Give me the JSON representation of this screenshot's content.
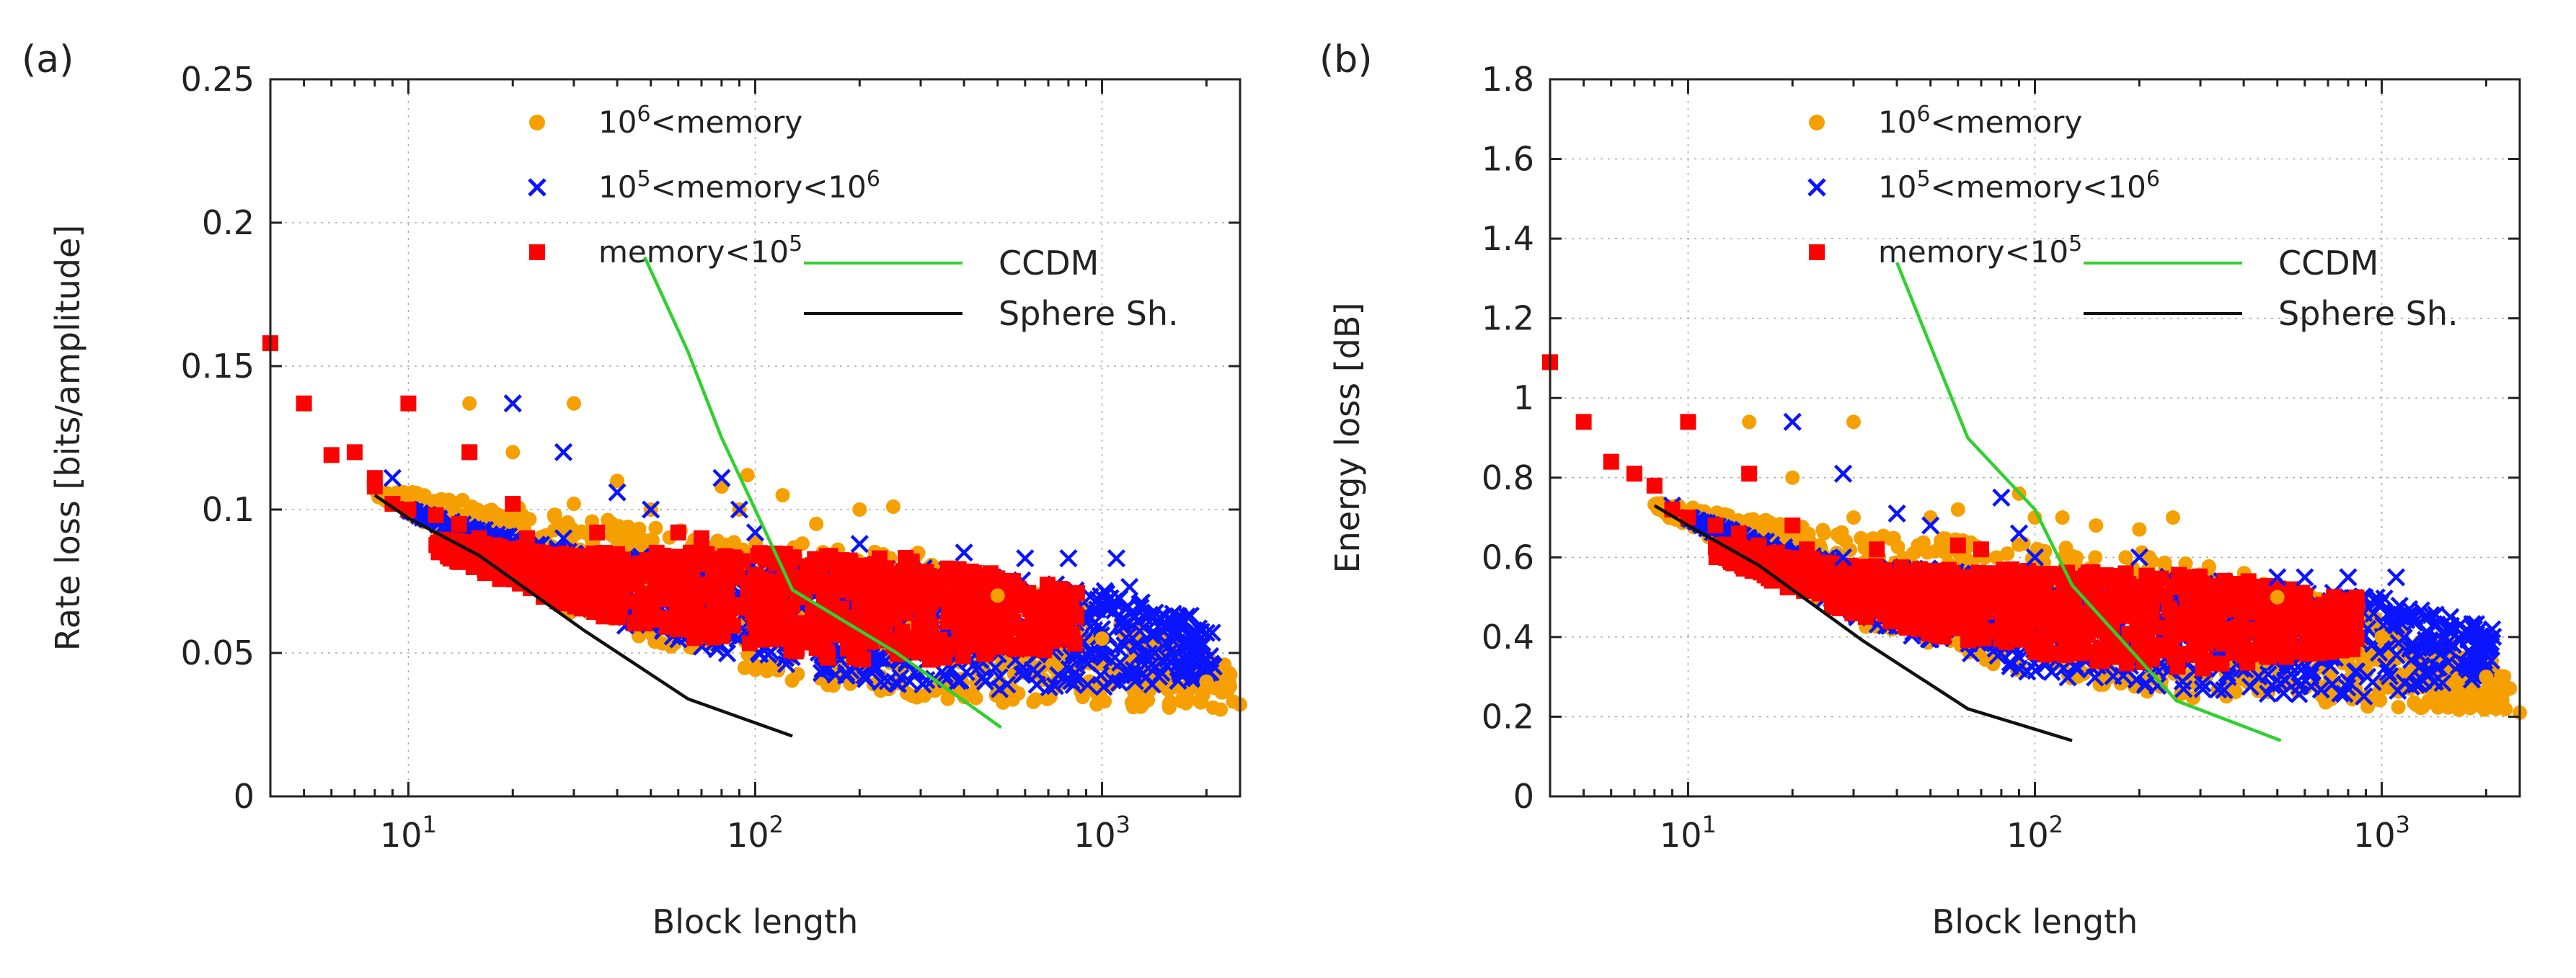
{
  "figure": {
    "panel_a_label": "(a)",
    "panel_b_label": "(b)"
  },
  "colors": {
    "orange": "#f5a000",
    "blue": "#0a14ff",
    "red": "#ff0000",
    "green": "#30d030",
    "black": "#111111"
  },
  "legend": {
    "orange_label_base": "10",
    "orange_label_exp": "6",
    "orange_label_rest": "<memory",
    "blue_label_base": "10",
    "blue_label_exp": "5",
    "blue_label_mid": "<memory<10",
    "blue_label_exp2": "6",
    "red_label_pre": "memory<10",
    "red_label_exp": "5",
    "ccdm": "CCDM",
    "sphere": "Sphere Sh."
  },
  "chart_data": [
    {
      "type": "scatter",
      "title": "",
      "xlabel": "Block length",
      "ylabel": "Rate loss [bits/amplitude]",
      "xscale": "log",
      "xlim": [
        4,
        2500
      ],
      "ylim": [
        0,
        0.25
      ],
      "yticks": [
        "0",
        "0.05",
        "0.1",
        "0.15",
        "0.2",
        "0.25"
      ],
      "xticks": [
        {
          "base": "10",
          "exp": "1",
          "value": 10
        },
        {
          "base": "10",
          "exp": "2",
          "value": 100
        },
        {
          "base": "10",
          "exp": "3",
          "value": 1000
        }
      ],
      "grid": true,
      "legend_position": "top",
      "series": [
        {
          "name": "10^6<memory",
          "marker": "circle",
          "color": "#f5a000",
          "points": [
            [
              15,
              0.137
            ],
            [
              20,
              0.12
            ],
            [
              30,
              0.137
            ],
            [
              30,
              0.102
            ],
            [
              40,
              0.11
            ],
            [
              50,
              0.1
            ],
            [
              80,
              0.108
            ],
            [
              95,
              0.112
            ],
            [
              90,
              0.1
            ],
            [
              120,
              0.105
            ],
            [
              150,
              0.095
            ],
            [
              200,
              0.1
            ],
            [
              250,
              0.101
            ],
            [
              500,
              0.07
            ],
            [
              1000,
              0.055
            ],
            [
              2000,
              0.04
            ],
            [
              2500,
              0.032
            ]
          ],
          "band": {
            "x_from": 8,
            "x_to": 2400,
            "bottom": [
              [
                8,
                0.105
              ],
              [
                30,
                0.063
              ],
              [
                100,
                0.042
              ],
              [
                300,
                0.034
              ],
              [
                1000,
                0.031
              ],
              [
                2400,
                0.03
              ]
            ],
            "top": [
              [
                8,
                0.108
              ],
              [
                30,
                0.098
              ],
              [
                100,
                0.09
              ],
              [
                300,
                0.085
              ],
              [
                1000,
                0.065
              ],
              [
                2400,
                0.045
              ]
            ]
          }
        },
        {
          "name": "10^5<memory<10^6",
          "marker": "x",
          "color": "#0a14ff",
          "points": [
            [
              9,
              0.111
            ],
            [
              20,
              0.137
            ],
            [
              28,
              0.12
            ],
            [
              28,
              0.09
            ],
            [
              40,
              0.106
            ],
            [
              50,
              0.1
            ],
            [
              80,
              0.111
            ],
            [
              90,
              0.1
            ],
            [
              100,
              0.092
            ],
            [
              200,
              0.088
            ],
            [
              400,
              0.085
            ],
            [
              600,
              0.083
            ],
            [
              800,
              0.083
            ],
            [
              1100,
              0.083
            ],
            [
              1200,
              0.073
            ],
            [
              1800,
              0.063
            ],
            [
              2000,
              0.057
            ]
          ],
          "band": {
            "x_from": 10,
            "x_to": 2100,
            "bottom": [
              [
                10,
                0.1
              ],
              [
                30,
                0.065
              ],
              [
                100,
                0.045
              ],
              [
                300,
                0.038
              ],
              [
                1000,
                0.036
              ],
              [
                2100,
                0.042
              ]
            ],
            "top": [
              [
                10,
                0.1
              ],
              [
                30,
                0.085
              ],
              [
                100,
                0.082
              ],
              [
                300,
                0.08
              ],
              [
                1000,
                0.072
              ],
              [
                2100,
                0.06
              ]
            ]
          }
        },
        {
          "name": "memory<10^5",
          "marker": "square",
          "color": "#ff0000",
          "points": [
            [
              4,
              0.158
            ],
            [
              5,
              0.137
            ],
            [
              6,
              0.119
            ],
            [
              7,
              0.12
            ],
            [
              8,
              0.111
            ],
            [
              8,
              0.108
            ],
            [
              10,
              0.137
            ],
            [
              9,
              0.102
            ],
            [
              10,
              0.1
            ],
            [
              12,
              0.098
            ],
            [
              15,
              0.12
            ],
            [
              14,
              0.095
            ],
            [
              16,
              0.09
            ],
            [
              20,
              0.102
            ],
            [
              22,
              0.09
            ],
            [
              35,
              0.092
            ],
            [
              60,
              0.092
            ],
            [
              70,
              0.09
            ]
          ],
          "band": {
            "x_from": 12,
            "x_to": 850,
            "bottom": [
              [
                12,
                0.085
              ],
              [
                30,
                0.065
              ],
              [
                100,
                0.05
              ],
              [
                300,
                0.046
              ],
              [
                850,
                0.052
              ]
            ],
            "top": [
              [
                12,
                0.09
              ],
              [
                30,
                0.085
              ],
              [
                100,
                0.085
              ],
              [
                300,
                0.083
              ],
              [
                850,
                0.072
              ]
            ]
          }
        },
        {
          "name": "CCDM",
          "type": "line",
          "color": "#30d030",
          "points": [
            [
              48,
              0.188
            ],
            [
              64,
              0.155
            ],
            [
              80,
              0.125
            ],
            [
              100,
              0.1
            ],
            [
              128,
              0.072
            ],
            [
              256,
              0.05
            ],
            [
              512,
              0.024
            ]
          ]
        },
        {
          "name": "Sphere Sh.",
          "type": "line",
          "color": "#111111",
          "points": [
            [
              8,
              0.105
            ],
            [
              10,
              0.097
            ],
            [
              16,
              0.084
            ],
            [
              32,
              0.058
            ],
            [
              64,
              0.034
            ],
            [
              128,
              0.021
            ]
          ]
        }
      ]
    },
    {
      "type": "scatter",
      "title": "",
      "xlabel": "Block length",
      "ylabel": "Energy loss [dB]",
      "xscale": "log",
      "xlim": [
        4,
        2500
      ],
      "ylim": [
        0,
        1.8
      ],
      "yticks": [
        "0",
        "0.2",
        "0.4",
        "0.6",
        "0.8",
        "1",
        "1.2",
        "1.4",
        "1.6",
        "1.8"
      ],
      "xticks": [
        {
          "base": "10",
          "exp": "1",
          "value": 10
        },
        {
          "base": "10",
          "exp": "2",
          "value": 100
        },
        {
          "base": "10",
          "exp": "3",
          "value": 1000
        }
      ],
      "grid": true,
      "legend_position": "top",
      "series": [
        {
          "name": "10^6<memory",
          "marker": "circle",
          "color": "#f5a000",
          "points": [
            [
              15,
              0.94
            ],
            [
              20,
              0.8
            ],
            [
              30,
              0.94
            ],
            [
              30,
              0.7
            ],
            [
              50,
              0.7
            ],
            [
              60,
              0.72
            ],
            [
              90,
              0.76
            ],
            [
              100,
              0.7
            ],
            [
              120,
              0.7
            ],
            [
              150,
              0.68
            ],
            [
              200,
              0.67
            ],
            [
              250,
              0.7
            ],
            [
              500,
              0.5
            ],
            [
              1000,
              0.4
            ],
            [
              2000,
              0.3
            ],
            [
              2500,
              0.21
            ]
          ],
          "band": {
            "x_from": 8,
            "x_to": 2400,
            "bottom": [
              [
                8,
                0.72
              ],
              [
                30,
                0.43
              ],
              [
                100,
                0.3
              ],
              [
                300,
                0.24
              ],
              [
                1000,
                0.22
              ],
              [
                2400,
                0.21
              ]
            ],
            "top": [
              [
                8,
                0.74
              ],
              [
                30,
                0.66
              ],
              [
                100,
                0.64
              ],
              [
                300,
                0.6
              ],
              [
                1000,
                0.45
              ],
              [
                2400,
                0.32
              ]
            ]
          }
        },
        {
          "name": "10^5<memory<10^6",
          "marker": "x",
          "color": "#0a14ff",
          "points": [
            [
              9,
              0.73
            ],
            [
              20,
              0.94
            ],
            [
              28,
              0.81
            ],
            [
              28,
              0.6
            ],
            [
              40,
              0.71
            ],
            [
              50,
              0.68
            ],
            [
              80,
              0.75
            ],
            [
              90,
              0.66
            ],
            [
              100,
              0.6
            ],
            [
              200,
              0.6
            ],
            [
              500,
              0.55
            ],
            [
              600,
              0.55
            ],
            [
              800,
              0.55
            ],
            [
              1100,
              0.55
            ],
            [
              1200,
              0.47
            ],
            [
              1800,
              0.41
            ],
            [
              2000,
              0.37
            ]
          ],
          "band": {
            "x_from": 10,
            "x_to": 2100,
            "bottom": [
              [
                10,
                0.7
              ],
              [
                30,
                0.45
              ],
              [
                100,
                0.3
              ],
              [
                300,
                0.26
              ],
              [
                1000,
                0.25
              ],
              [
                2100,
                0.3
              ]
            ],
            "top": [
              [
                10,
                0.7
              ],
              [
                30,
                0.58
              ],
              [
                100,
                0.56
              ],
              [
                300,
                0.55
              ],
              [
                1000,
                0.5
              ],
              [
                2100,
                0.42
              ]
            ]
          }
        },
        {
          "name": "memory<10^5",
          "marker": "square",
          "color": "#ff0000",
          "points": [
            [
              4,
              1.09
            ],
            [
              5,
              0.94
            ],
            [
              6,
              0.84
            ],
            [
              7,
              0.81
            ],
            [
              8,
              0.78
            ],
            [
              10,
              0.94
            ],
            [
              9,
              0.72
            ],
            [
              10,
              0.7
            ],
            [
              12,
              0.68
            ],
            [
              15,
              0.81
            ],
            [
              14,
              0.66
            ],
            [
              16,
              0.63
            ],
            [
              20,
              0.68
            ],
            [
              22,
              0.62
            ],
            [
              35,
              0.62
            ],
            [
              60,
              0.63
            ],
            [
              70,
              0.62
            ]
          ],
          "band": {
            "x_from": 12,
            "x_to": 850,
            "bottom": [
              [
                12,
                0.6
              ],
              [
                30,
                0.45
              ],
              [
                100,
                0.35
              ],
              [
                300,
                0.32
              ],
              [
                850,
                0.37
              ]
            ],
            "top": [
              [
                12,
                0.64
              ],
              [
                30,
                0.58
              ],
              [
                100,
                0.57
              ],
              [
                300,
                0.56
              ],
              [
                850,
                0.5
              ]
            ]
          }
        },
        {
          "name": "CCDM",
          "type": "line",
          "color": "#30d030",
          "points": [
            [
              40,
              1.34
            ],
            [
              64,
              0.9
            ],
            [
              100,
              0.72
            ],
            [
              128,
              0.53
            ],
            [
              256,
              0.24
            ],
            [
              512,
              0.14
            ]
          ]
        },
        {
          "name": "Sphere Sh.",
          "type": "line",
          "color": "#111111",
          "points": [
            [
              8,
              0.73
            ],
            [
              10,
              0.68
            ],
            [
              16,
              0.58
            ],
            [
              32,
              0.39
            ],
            [
              64,
              0.22
            ],
            [
              128,
              0.14
            ]
          ]
        }
      ]
    }
  ]
}
